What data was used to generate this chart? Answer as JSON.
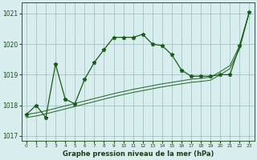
{
  "x_hours": [
    0,
    1,
    2,
    3,
    4,
    5,
    6,
    7,
    8,
    9,
    10,
    11,
    12,
    13,
    14,
    15,
    16,
    17,
    18,
    19,
    20,
    21,
    22,
    23
  ],
  "series_main": [
    1017.7,
    1018.0,
    1017.6,
    1019.35,
    1018.2,
    1018.05,
    1018.85,
    1019.4,
    1019.82,
    1020.22,
    1020.22,
    1020.22,
    1020.32,
    1020.0,
    1019.95,
    1019.65,
    1019.15,
    1018.95,
    1018.95,
    1018.95,
    1019.0,
    1019.0,
    1019.95,
    1021.05
  ],
  "series_trend1": [
    1017.7,
    1017.75,
    1017.82,
    1017.9,
    1017.98,
    1018.06,
    1018.14,
    1018.22,
    1018.3,
    1018.38,
    1018.45,
    1018.52,
    1018.58,
    1018.64,
    1018.7,
    1018.75,
    1018.8,
    1018.85,
    1018.88,
    1018.92,
    1019.1,
    1019.3,
    1019.95,
    1021.05
  ],
  "series_trend2": [
    1017.6,
    1017.65,
    1017.72,
    1017.8,
    1017.88,
    1017.96,
    1018.04,
    1018.12,
    1018.2,
    1018.28,
    1018.35,
    1018.42,
    1018.48,
    1018.54,
    1018.6,
    1018.65,
    1018.7,
    1018.75,
    1018.78,
    1018.82,
    1019.0,
    1019.2,
    1019.85,
    1021.05
  ],
  "ylim_min": 1016.85,
  "ylim_max": 1021.35,
  "yticks": [
    1017,
    1018,
    1019,
    1020,
    1021
  ],
  "xticks": [
    0,
    1,
    2,
    3,
    4,
    5,
    6,
    7,
    8,
    9,
    10,
    11,
    12,
    13,
    14,
    15,
    16,
    17,
    18,
    19,
    20,
    21,
    22,
    23
  ],
  "bg_color": "#d8eeee",
  "grid_color": "#99bbbb",
  "line_color_main": "#1a5c1a",
  "line_color_trend": "#2d6b2d",
  "xlabel": "Graphe pression niveau de la mer (hPa)",
  "tick_color": "#1a4a1a",
  "spine_color": "#2d5a2d"
}
